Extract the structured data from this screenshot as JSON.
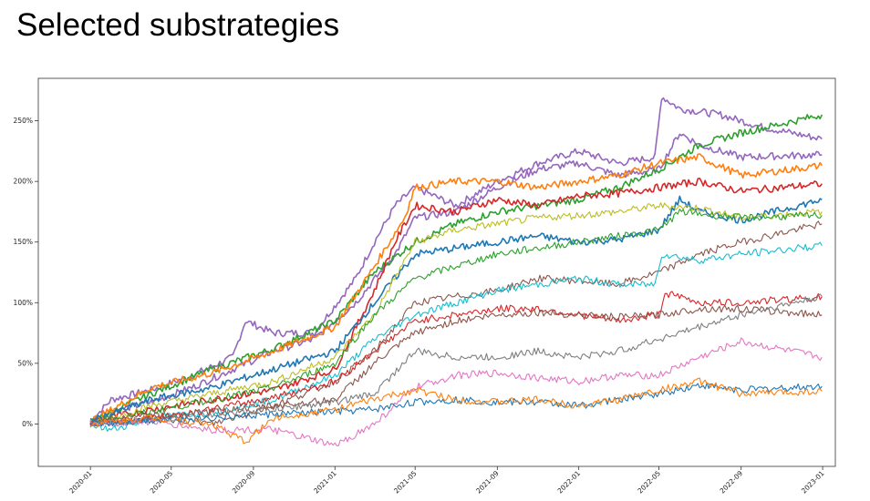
{
  "slide": {
    "title": "Selected substrategies"
  },
  "chart_data": {
    "type": "line",
    "title": "",
    "xlabel": "",
    "ylabel": "",
    "x_ticks": [
      "2020-01",
      "2020-05",
      "2020-09",
      "2021-01",
      "2021-05",
      "2021-09",
      "2022-01",
      "2022-05",
      "2022-09",
      "2023-01"
    ],
    "y_ticks": [
      "0%",
      "50%",
      "100%",
      "150%",
      "200%",
      "250%"
    ],
    "y_tick_values": [
      0,
      50,
      100,
      150,
      200,
      250
    ],
    "xlim": [
      "2019-10-15",
      "2023-01-20"
    ],
    "ylim": [
      -35,
      285
    ],
    "grid": false,
    "legend": "none",
    "series": [
      {
        "color": "#9467bd",
        "x": [
          "2020-01-01",
          "2020-02-01",
          "2020-04-01",
          "2020-06-01",
          "2020-08-01",
          "2020-08-20",
          "2020-10-01",
          "2020-12-01",
          "2021-02-01",
          "2021-03-01",
          "2021-04-01",
          "2021-05-01",
          "2021-07-01",
          "2021-09-01",
          "2021-11-01",
          "2022-01-01",
          "2022-03-01",
          "2022-04-25",
          "2022-05-05",
          "2022-06-01",
          "2022-08-01",
          "2022-10-01",
          "2022-12-31"
        ],
        "y": [
          2,
          20,
          28,
          40,
          55,
          85,
          75,
          75,
          120,
          150,
          180,
          195,
          180,
          200,
          215,
          225,
          215,
          220,
          270,
          260,
          255,
          245,
          235
        ]
      },
      {
        "color": "#9467bd",
        "x": [
          "2020-01-01",
          "2020-02-01",
          "2020-04-01",
          "2020-06-01",
          "2020-08-01",
          "2020-10-01",
          "2020-12-01",
          "2021-02-01",
          "2021-04-01",
          "2021-05-01",
          "2021-07-01",
          "2021-09-01",
          "2021-11-01",
          "2022-01-01",
          "2022-03-01",
          "2022-05-01",
          "2022-06-01",
          "2022-07-01",
          "2022-09-01",
          "2022-12-31"
        ],
        "y": [
          2,
          10,
          18,
          30,
          45,
          60,
          70,
          100,
          140,
          170,
          175,
          195,
          210,
          215,
          205,
          210,
          240,
          230,
          220,
          222
        ]
      },
      {
        "color": "#2ca02c",
        "x": [
          "2020-01-01",
          "2020-04-01",
          "2020-07-01",
          "2020-10-01",
          "2021-01-01",
          "2021-03-01",
          "2021-05-01",
          "2021-07-01",
          "2021-09-01",
          "2021-11-01",
          "2022-01-01",
          "2022-03-01",
          "2022-05-01",
          "2022-07-01",
          "2022-09-01",
          "2022-12-31"
        ],
        "y": [
          2,
          25,
          45,
          62,
          85,
          125,
          150,
          165,
          175,
          180,
          185,
          195,
          210,
          230,
          240,
          255
        ]
      },
      {
        "color": "#ff7f0e",
        "x": [
          "2020-01-01",
          "2020-04-01",
          "2020-07-01",
          "2020-10-01",
          "2021-01-01",
          "2021-03-01",
          "2021-04-15",
          "2021-05-01",
          "2021-07-01",
          "2021-09-01",
          "2021-11-01",
          "2022-01-01",
          "2022-03-01",
          "2022-05-01",
          "2022-07-01",
          "2022-09-01",
          "2022-12-31"
        ],
        "y": [
          2,
          30,
          42,
          60,
          80,
          130,
          170,
          195,
          200,
          200,
          195,
          200,
          205,
          215,
          220,
          205,
          213
        ]
      },
      {
        "color": "#d62728",
        "x": [
          "2020-01-01",
          "2020-04-01",
          "2020-07-01",
          "2020-10-01",
          "2021-01-01",
          "2021-03-01",
          "2021-04-01",
          "2021-05-01",
          "2021-07-01",
          "2021-09-01",
          "2021-11-01",
          "2022-01-01",
          "2022-03-01",
          "2022-05-01",
          "2022-07-01",
          "2022-09-01",
          "2022-12-31"
        ],
        "y": [
          2,
          12,
          20,
          28,
          45,
          110,
          150,
          180,
          175,
          185,
          180,
          188,
          190,
          195,
          200,
          192,
          198
        ]
      },
      {
        "color": "#1f77b4",
        "x": [
          "2020-01-01",
          "2020-04-01",
          "2020-07-01",
          "2020-10-01",
          "2021-01-01",
          "2021-03-01",
          "2021-05-01",
          "2021-07-01",
          "2021-09-01",
          "2021-11-01",
          "2022-01-01",
          "2022-03-01",
          "2022-05-01",
          "2022-06-01",
          "2022-07-01",
          "2022-09-01",
          "2022-12-31"
        ],
        "y": [
          2,
          20,
          30,
          45,
          60,
          100,
          140,
          145,
          150,
          155,
          150,
          152,
          160,
          185,
          175,
          168,
          185
        ]
      },
      {
        "color": "#bcbd22",
        "x": [
          "2020-01-01",
          "2020-04-01",
          "2020-07-01",
          "2020-10-01",
          "2021-01-01",
          "2021-03-01",
          "2021-05-01",
          "2021-07-01",
          "2021-09-01",
          "2021-11-01",
          "2022-01-01",
          "2022-03-01",
          "2022-05-01",
          "2022-07-01",
          "2022-09-01",
          "2022-12-31"
        ],
        "y": [
          0,
          15,
          25,
          35,
          55,
          90,
          150,
          160,
          165,
          170,
          172,
          175,
          180,
          178,
          170,
          175
        ]
      },
      {
        "color": "#2ca02c",
        "x": [
          "2020-01-01",
          "2020-04-01",
          "2020-07-01",
          "2020-10-01",
          "2021-01-01",
          "2021-03-01",
          "2021-05-01",
          "2021-07-01",
          "2021-09-01",
          "2021-11-01",
          "2022-01-01",
          "2022-03-01",
          "2022-05-01",
          "2022-06-01",
          "2022-09-01",
          "2022-12-31"
        ],
        "y": [
          2,
          10,
          20,
          30,
          50,
          90,
          120,
          130,
          140,
          145,
          150,
          155,
          160,
          175,
          170,
          172
        ]
      },
      {
        "color": "#8c564b",
        "x": [
          "2020-01-01",
          "2020-04-01",
          "2020-07-01",
          "2020-10-01",
          "2021-01-01",
          "2021-03-01",
          "2021-05-01",
          "2021-07-01",
          "2021-09-01",
          "2021-11-01",
          "2022-01-01",
          "2022-03-01",
          "2022-05-01",
          "2022-07-01",
          "2022-09-01",
          "2022-12-31"
        ],
        "y": [
          0,
          8,
          0,
          15,
          35,
          60,
          100,
          105,
          110,
          120,
          118,
          115,
          125,
          140,
          150,
          165
        ]
      },
      {
        "color": "#17becf",
        "x": [
          "2020-01-01",
          "2020-02-01",
          "2020-04-01",
          "2020-07-01",
          "2020-10-01",
          "2021-01-01",
          "2021-03-01",
          "2021-05-01",
          "2021-07-01",
          "2021-09-01",
          "2021-11-01",
          "2022-01-01",
          "2022-03-01",
          "2022-04-25",
          "2022-05-05",
          "2022-07-01",
          "2022-09-01",
          "2022-12-31"
        ],
        "y": [
          0,
          -5,
          5,
          10,
          20,
          40,
          70,
          90,
          100,
          110,
          115,
          120,
          115,
          115,
          140,
          135,
          140,
          147
        ]
      },
      {
        "color": "#d62728",
        "x": [
          "2020-01-01",
          "2020-04-01",
          "2020-07-01",
          "2020-10-01",
          "2021-01-01",
          "2021-03-01",
          "2021-05-01",
          "2021-07-01",
          "2021-09-01",
          "2021-11-01",
          "2022-01-01",
          "2022-03-01",
          "2022-05-01",
          "2022-05-10",
          "2022-07-01",
          "2022-09-01",
          "2022-12-31"
        ],
        "y": [
          0,
          5,
          12,
          22,
          35,
          60,
          85,
          90,
          95,
          95,
          90,
          85,
          90,
          108,
          100,
          100,
          105
        ]
      },
      {
        "color": "#8c564b",
        "x": [
          "2020-01-01",
          "2020-04-01",
          "2020-07-01",
          "2020-10-01",
          "2021-01-01",
          "2021-03-01",
          "2021-05-01",
          "2021-07-01",
          "2021-09-01",
          "2021-11-01",
          "2022-01-01",
          "2022-03-01",
          "2022-05-01",
          "2022-07-01",
          "2022-09-01",
          "2022-12-31"
        ],
        "y": [
          0,
          5,
          10,
          15,
          20,
          50,
          75,
          85,
          90,
          92,
          90,
          88,
          90,
          95,
          95,
          90
        ]
      },
      {
        "color": "#7f7f7f",
        "x": [
          "2020-01-01",
          "2020-04-01",
          "2020-07-01",
          "2020-10-01",
          "2021-01-01",
          "2021-03-01",
          "2021-05-01",
          "2021-07-01",
          "2021-09-01",
          "2021-11-01",
          "2022-01-01",
          "2022-03-01",
          "2022-05-01",
          "2022-07-01",
          "2022-09-01",
          "2022-12-31"
        ],
        "y": [
          0,
          3,
          8,
          12,
          18,
          25,
          60,
          55,
          55,
          60,
          55,
          60,
          70,
          80,
          90,
          105
        ]
      },
      {
        "color": "#e377c2",
        "x": [
          "2020-01-01",
          "2020-04-01",
          "2020-07-01",
          "2020-10-01",
          "2021-01-01",
          "2021-03-01",
          "2021-05-01",
          "2021-07-01",
          "2021-09-01",
          "2021-11-01",
          "2022-01-01",
          "2022-03-01",
          "2022-05-01",
          "2022-07-01",
          "2022-09-01",
          "2022-12-31"
        ],
        "y": [
          0,
          2,
          -5,
          -5,
          -18,
          0,
          30,
          40,
          42,
          38,
          35,
          40,
          40,
          55,
          68,
          55
        ]
      },
      {
        "color": "#1f77b4",
        "x": [
          "2020-01-01",
          "2020-04-01",
          "2020-07-01",
          "2020-10-01",
          "2021-01-01",
          "2021-03-01",
          "2021-05-01",
          "2021-07-01",
          "2021-09-01",
          "2021-11-01",
          "2022-01-01",
          "2022-03-01",
          "2022-05-01",
          "2022-07-01",
          "2022-09-01",
          "2022-12-31"
        ],
        "y": [
          0,
          3,
          5,
          8,
          10,
          12,
          18,
          20,
          18,
          18,
          15,
          20,
          25,
          32,
          28,
          31
        ]
      },
      {
        "color": "#ff7f0e",
        "x": [
          "2020-01-01",
          "2020-04-01",
          "2020-07-01",
          "2020-08-20",
          "2020-10-01",
          "2021-01-01",
          "2021-03-01",
          "2021-05-01",
          "2021-07-01",
          "2021-09-01",
          "2021-11-01",
          "2022-01-01",
          "2022-03-01",
          "2022-05-01",
          "2022-07-01",
          "2022-09-01",
          "2022-12-31"
        ],
        "y": [
          0,
          5,
          0,
          -15,
          5,
          12,
          20,
          28,
          20,
          18,
          20,
          15,
          20,
          28,
          35,
          25,
          27
        ]
      }
    ]
  }
}
